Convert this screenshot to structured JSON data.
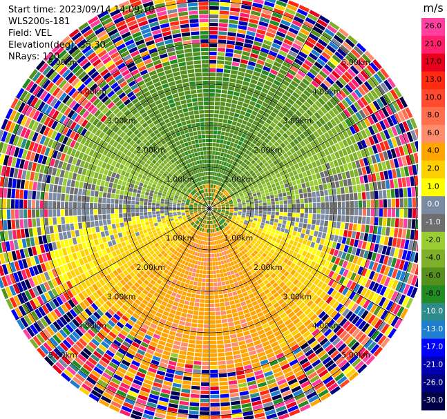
{
  "header": {
    "start_time": "Start time: 2023/09/14 14:09:10",
    "instrument": "WLS200s-181",
    "field": "Field: VEL",
    "elevation": "Elevation(deg): 35.30",
    "nrays": "NRays: 120"
  },
  "chart_data": {
    "type": "heatmap",
    "projection": "polar-ppi",
    "field": "VEL",
    "nrays": 120,
    "range_rings": [
      {
        "value": 1,
        "label": "1.00km"
      },
      {
        "value": 2,
        "label": "2.00km"
      },
      {
        "value": 3,
        "label": "3.00km"
      },
      {
        "value": 4,
        "label": "4.00km"
      },
      {
        "value": 5,
        "label": "5.00km"
      }
    ],
    "max_range_km": 5.4,
    "colorbar": {
      "unit": "m/s",
      "ticks": [
        "26.0",
        "21.0",
        "17.0",
        "13.0",
        "10.0",
        "8.0",
        "6.0",
        "4.0",
        "2.0",
        "1.0",
        "0.0",
        "-1.0",
        "-2.0",
        "-4.0",
        "-6.0",
        "-8.0",
        "-10.0",
        "-13.0",
        "-17.0",
        "-21.0",
        "-26.0",
        "-30.0"
      ],
      "bins": [
        {
          "lo": 26,
          "hi": 30,
          "color": "#ff40a0"
        },
        {
          "lo": 21,
          "hi": 26,
          "color": "#ff1f6a"
        },
        {
          "lo": 17,
          "hi": 21,
          "color": "#e8001c"
        },
        {
          "lo": 13,
          "hi": 17,
          "color": "#ff2a10"
        },
        {
          "lo": 10,
          "hi": 13,
          "color": "#ff4a30"
        },
        {
          "lo": 8,
          "hi": 10,
          "color": "#ff6f4f"
        },
        {
          "lo": 6,
          "hi": 8,
          "color": "#ff8c6a"
        },
        {
          "lo": 4,
          "hi": 6,
          "color": "#ffa400"
        },
        {
          "lo": 2,
          "hi": 4,
          "color": "#ffd000"
        },
        {
          "lo": 1,
          "hi": 2,
          "color": "#ffff00"
        },
        {
          "lo": 0,
          "hi": 1,
          "color": "#7b8ba3"
        },
        {
          "lo": -1,
          "hi": 0,
          "color": "#6e6e6e"
        },
        {
          "lo": -2,
          "hi": -1,
          "color": "#9acd32"
        },
        {
          "lo": -4,
          "hi": -2,
          "color": "#7fb02a"
        },
        {
          "lo": -6,
          "hi": -4,
          "color": "#55901e"
        },
        {
          "lo": -8,
          "hi": -6,
          "color": "#228b22"
        },
        {
          "lo": -10,
          "hi": -8,
          "color": "#2e8b8b"
        },
        {
          "lo": -13,
          "hi": -10,
          "color": "#1e7fd0"
        },
        {
          "lo": -17,
          "hi": -13,
          "color": "#0000ff"
        },
        {
          "lo": -21,
          "hi": -17,
          "color": "#0000b0"
        },
        {
          "lo": -26,
          "hi": -21,
          "color": "#000080"
        },
        {
          "lo": -30,
          "hi": -26,
          "color": "#000048"
        }
      ]
    }
  }
}
